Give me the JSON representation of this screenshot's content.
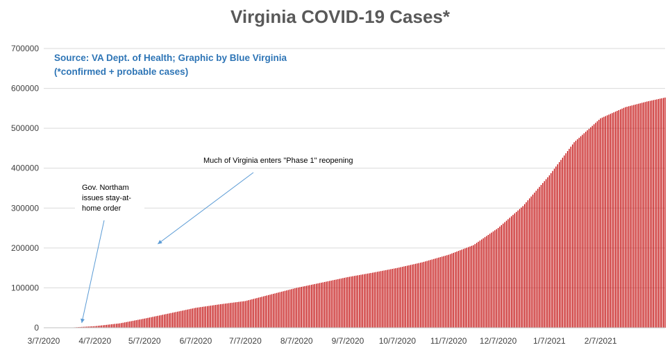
{
  "chart_data": {
    "type": "bar",
    "title": "Virginia COVID-19 Cases*",
    "source_line1": "Source: VA Dept. of Health; Graphic by Blue Virginia",
    "source_line2": "(*confirmed + probable cases)",
    "xlabel": "",
    "ylabel": "",
    "ylim": [
      0,
      700000
    ],
    "grid": true,
    "y_ticks": [
      "0",
      "100000",
      "200000",
      "300000",
      "400000",
      "500000",
      "600000",
      "700000"
    ],
    "x_ticks": [
      "3/7/2020",
      "4/7/2020",
      "5/7/2020",
      "6/7/2020",
      "7/7/2020",
      "8/7/2020",
      "9/7/2020",
      "10/7/2020",
      "11/7/2020",
      "12/7/2020",
      "1/7/2021",
      "2/7/2021"
    ],
    "x_start": "2020-03-07",
    "x_end": "2021-03-18",
    "series": [
      {
        "color": "#c00000",
        "x": [
          "2020-03-07",
          "2020-03-22",
          "2020-04-07",
          "2020-04-22",
          "2020-05-07",
          "2020-05-22",
          "2020-06-07",
          "2020-06-22",
          "2020-07-07",
          "2020-07-22",
          "2020-08-07",
          "2020-08-22",
          "2020-09-07",
          "2020-09-22",
          "2020-10-07",
          "2020-10-22",
          "2020-11-07",
          "2020-11-22",
          "2020-12-07",
          "2020-12-22",
          "2021-01-07",
          "2021-01-22",
          "2021-02-07",
          "2021-02-22",
          "2021-03-07",
          "2021-03-18"
        ],
        "values": [
          0,
          200,
          4000,
          11000,
          23000,
          36000,
          50000,
          59000,
          67000,
          83000,
          100000,
          113000,
          127000,
          138000,
          150000,
          164000,
          183000,
          207000,
          250000,
          305000,
          382000,
          465000,
          525000,
          553000,
          567000,
          577000
        ]
      }
    ],
    "annotations": [
      {
        "lines": [
          "Gov. Northam",
          "issues stay-at-",
          "home order"
        ],
        "target_x": "2020-03-30",
        "target_y": 12000
      },
      {
        "lines": [
          "Much of Virginia enters \"Phase 1\" reopening"
        ],
        "target_x": "2020-05-15",
        "target_y": 210000
      }
    ]
  }
}
